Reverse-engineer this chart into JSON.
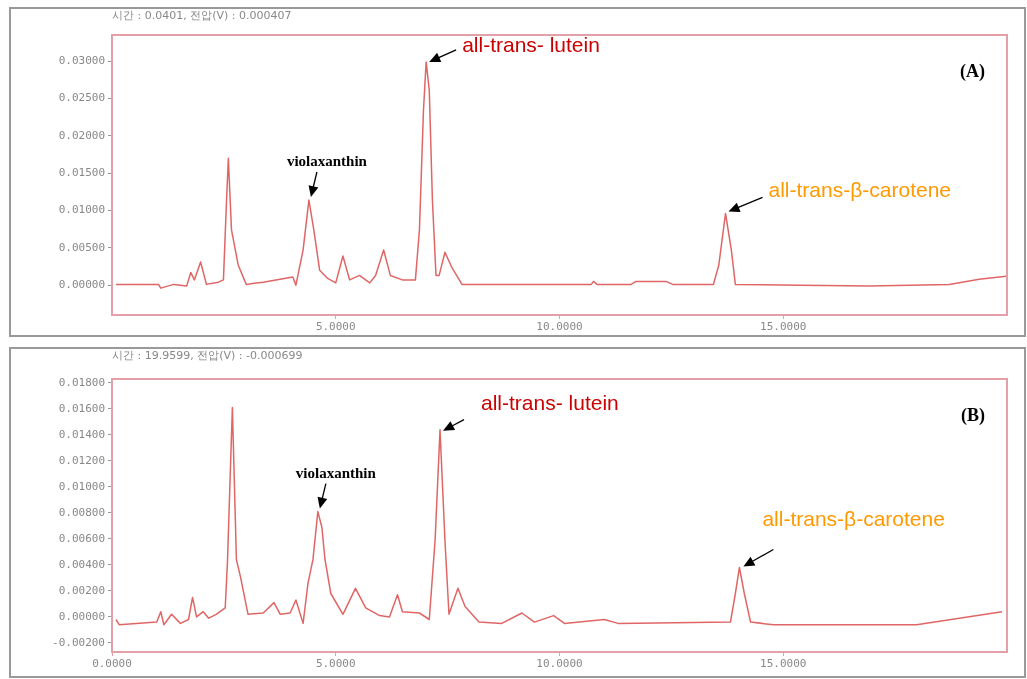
{
  "chart_data": [
    {
      "type": "line",
      "subtitle": "시간 : 0.0401, 전압(V) : 0.000407",
      "color": "#e06666",
      "x": [
        0.09,
        1.04,
        1.09,
        1.38,
        1.67,
        1.76,
        1.84,
        1.98,
        2.11,
        2.38,
        2.49,
        2.56,
        2.6,
        2.67,
        2.82,
        3.0,
        3.38,
        4.04,
        4.11,
        4.27,
        4.4,
        4.51,
        4.64,
        4.82,
        5.0,
        5.16,
        5.31,
        5.53,
        5.76,
        5.89,
        6.07,
        6.22,
        6.49,
        6.78,
        6.87,
        6.96,
        7.02,
        7.09,
        7.16,
        7.24,
        7.31,
        7.44,
        7.6,
        7.82,
        10.71,
        10.76,
        10.84,
        11.6,
        11.71,
        12.38,
        12.53,
        13.44,
        13.56,
        13.71,
        13.84,
        13.93,
        15.38,
        16.93,
        18.71,
        19.38,
        19.98
      ],
      "values": [
        0.0001,
        0.0001,
        -0.0004,
        0.0001,
        -0.0001,
        0.0017,
        0.0007,
        0.0031,
        0.0001,
        0.0004,
        0.0007,
        0.0114,
        0.017,
        0.0074,
        0.0027,
        0.0001,
        0.0004,
        0.0011,
        0.0,
        0.0047,
        0.0114,
        0.0074,
        0.002,
        0.0009,
        0.0003,
        0.0039,
        0.0007,
        0.0013,
        0.0003,
        0.0013,
        0.0047,
        0.0013,
        0.0007,
        0.0007,
        0.0074,
        0.0234,
        0.0299,
        0.0261,
        0.0114,
        0.0013,
        0.0013,
        0.0044,
        0.0023,
        0.0001,
        0.0001,
        0.0005,
        0.0001,
        0.0001,
        0.0005,
        0.0005,
        0.0001,
        0.0001,
        0.0027,
        0.0096,
        0.0047,
        0.0001,
        0.0,
        -0.0001,
        0.0001,
        0.0008,
        0.0012
      ],
      "xlim": [
        0,
        20
      ],
      "xticks": [
        {
          "value": 5,
          "label": "5.0000"
        },
        {
          "value": 10,
          "label": "10.0000"
        },
        {
          "value": 15,
          "label": "15.0000"
        }
      ],
      "ylim": [
        -0.004,
        0.0335
      ],
      "yticks": [
        {
          "value": 0,
          "label": "0.00000"
        },
        {
          "value": 0.005,
          "label": "0.00500"
        },
        {
          "value": 0.01,
          "label": "0.01000"
        },
        {
          "value": 0.015,
          "label": "0.01500"
        },
        {
          "value": 0.02,
          "label": "0.02000"
        },
        {
          "value": 0.025,
          "label": "0.02500"
        },
        {
          "value": 0.03,
          "label": "0.03000"
        }
      ],
      "annotations": [
        {
          "text": "violaxanthin",
          "x": 4.4,
          "y": 0.0114
        },
        {
          "text": "all-trans- lutein",
          "x": 7.02,
          "y": 0.0299
        },
        {
          "text": "all-trans-β-carotene",
          "x": 13.71,
          "y": 0.0096
        },
        "(A)"
      ]
    },
    {
      "type": "line",
      "subtitle": "시간 : 19.9599, 전압(V) : -0.000699",
      "color": "#e06666",
      "x": [
        0.09,
        0.16,
        1.0,
        1.09,
        1.16,
        1.33,
        1.53,
        1.71,
        1.8,
        1.89,
        2.04,
        2.16,
        2.33,
        2.53,
        2.58,
        2.69,
        2.78,
        2.87,
        3.04,
        3.38,
        3.62,
        3.76,
        3.98,
        4.11,
        4.27,
        4.38,
        4.49,
        4.6,
        4.69,
        4.76,
        4.89,
        5.16,
        5.44,
        5.67,
        5.98,
        6.2,
        6.38,
        6.49,
        6.87,
        7.09,
        7.22,
        7.33,
        7.44,
        7.53,
        7.73,
        7.89,
        8.2,
        8.71,
        9.16,
        9.44,
        9.87,
        10.11,
        11.0,
        11.31,
        13.82,
        13.93,
        14.02,
        14.13,
        14.27,
        14.78,
        17.98,
        19.89
      ],
      "values": [
        -0.0002,
        -0.0006,
        -0.0004,
        0.0004,
        -0.0006,
        0.0002,
        -0.0005,
        -0.0002,
        0.0015,
        0.0,
        0.0004,
        -0.0001,
        0.0002,
        0.0007,
        0.0042,
        0.0161,
        0.0044,
        0.0031,
        0.0002,
        0.0003,
        0.0011,
        0.0002,
        0.0003,
        0.0013,
        -0.0005,
        0.0026,
        0.0044,
        0.0081,
        0.0069,
        0.0044,
        0.0018,
        0.0002,
        0.0022,
        0.0007,
        0.0001,
        0.0,
        0.0017,
        0.0004,
        0.0003,
        -0.0002,
        0.0059,
        0.0144,
        0.0059,
        0.0002,
        0.0022,
        0.0008,
        -0.0004,
        -0.0005,
        0.0003,
        -0.0004,
        0.0001,
        -0.0005,
        -0.0002,
        -0.0005,
        -0.0004,
        0.0018,
        0.0038,
        0.0018,
        -0.0004,
        -0.0006,
        -0.0006,
        0.0004
      ],
      "xlim": [
        0,
        20
      ],
      "xticks": [
        {
          "value": 0,
          "label": "0.0000"
        },
        {
          "value": 5,
          "label": "5.0000"
        },
        {
          "value": 10,
          "label": "10.0000"
        },
        {
          "value": 15,
          "label": "15.0000"
        }
      ],
      "ylim": [
        -0.0027,
        0.0183
      ],
      "yticks": [
        {
          "value": -0.002,
          "label": "-0.00200"
        },
        {
          "value": 0,
          "label": "0.00000"
        },
        {
          "value": 0.002,
          "label": "0.00200"
        },
        {
          "value": 0.004,
          "label": "0.00400"
        },
        {
          "value": 0.006,
          "label": "0.00600"
        },
        {
          "value": 0.008,
          "label": "0.00800"
        },
        {
          "value": 0.01,
          "label": "0.01000"
        },
        {
          "value": 0.012,
          "label": "0.01200"
        },
        {
          "value": 0.014,
          "label": "0.01400"
        },
        {
          "value": 0.016,
          "label": "0.01600"
        },
        {
          "value": 0.018,
          "label": "0.01800"
        }
      ],
      "annotations": [
        {
          "text": "violaxanthin",
          "x": 4.6,
          "y": 0.0081
        },
        {
          "text": "all-trans- lutein",
          "x": 7.33,
          "y": 0.0144
        },
        {
          "text": "all-trans-β-carotene",
          "x": 14.02,
          "y": 0.0038
        },
        "(B)"
      ]
    }
  ]
}
